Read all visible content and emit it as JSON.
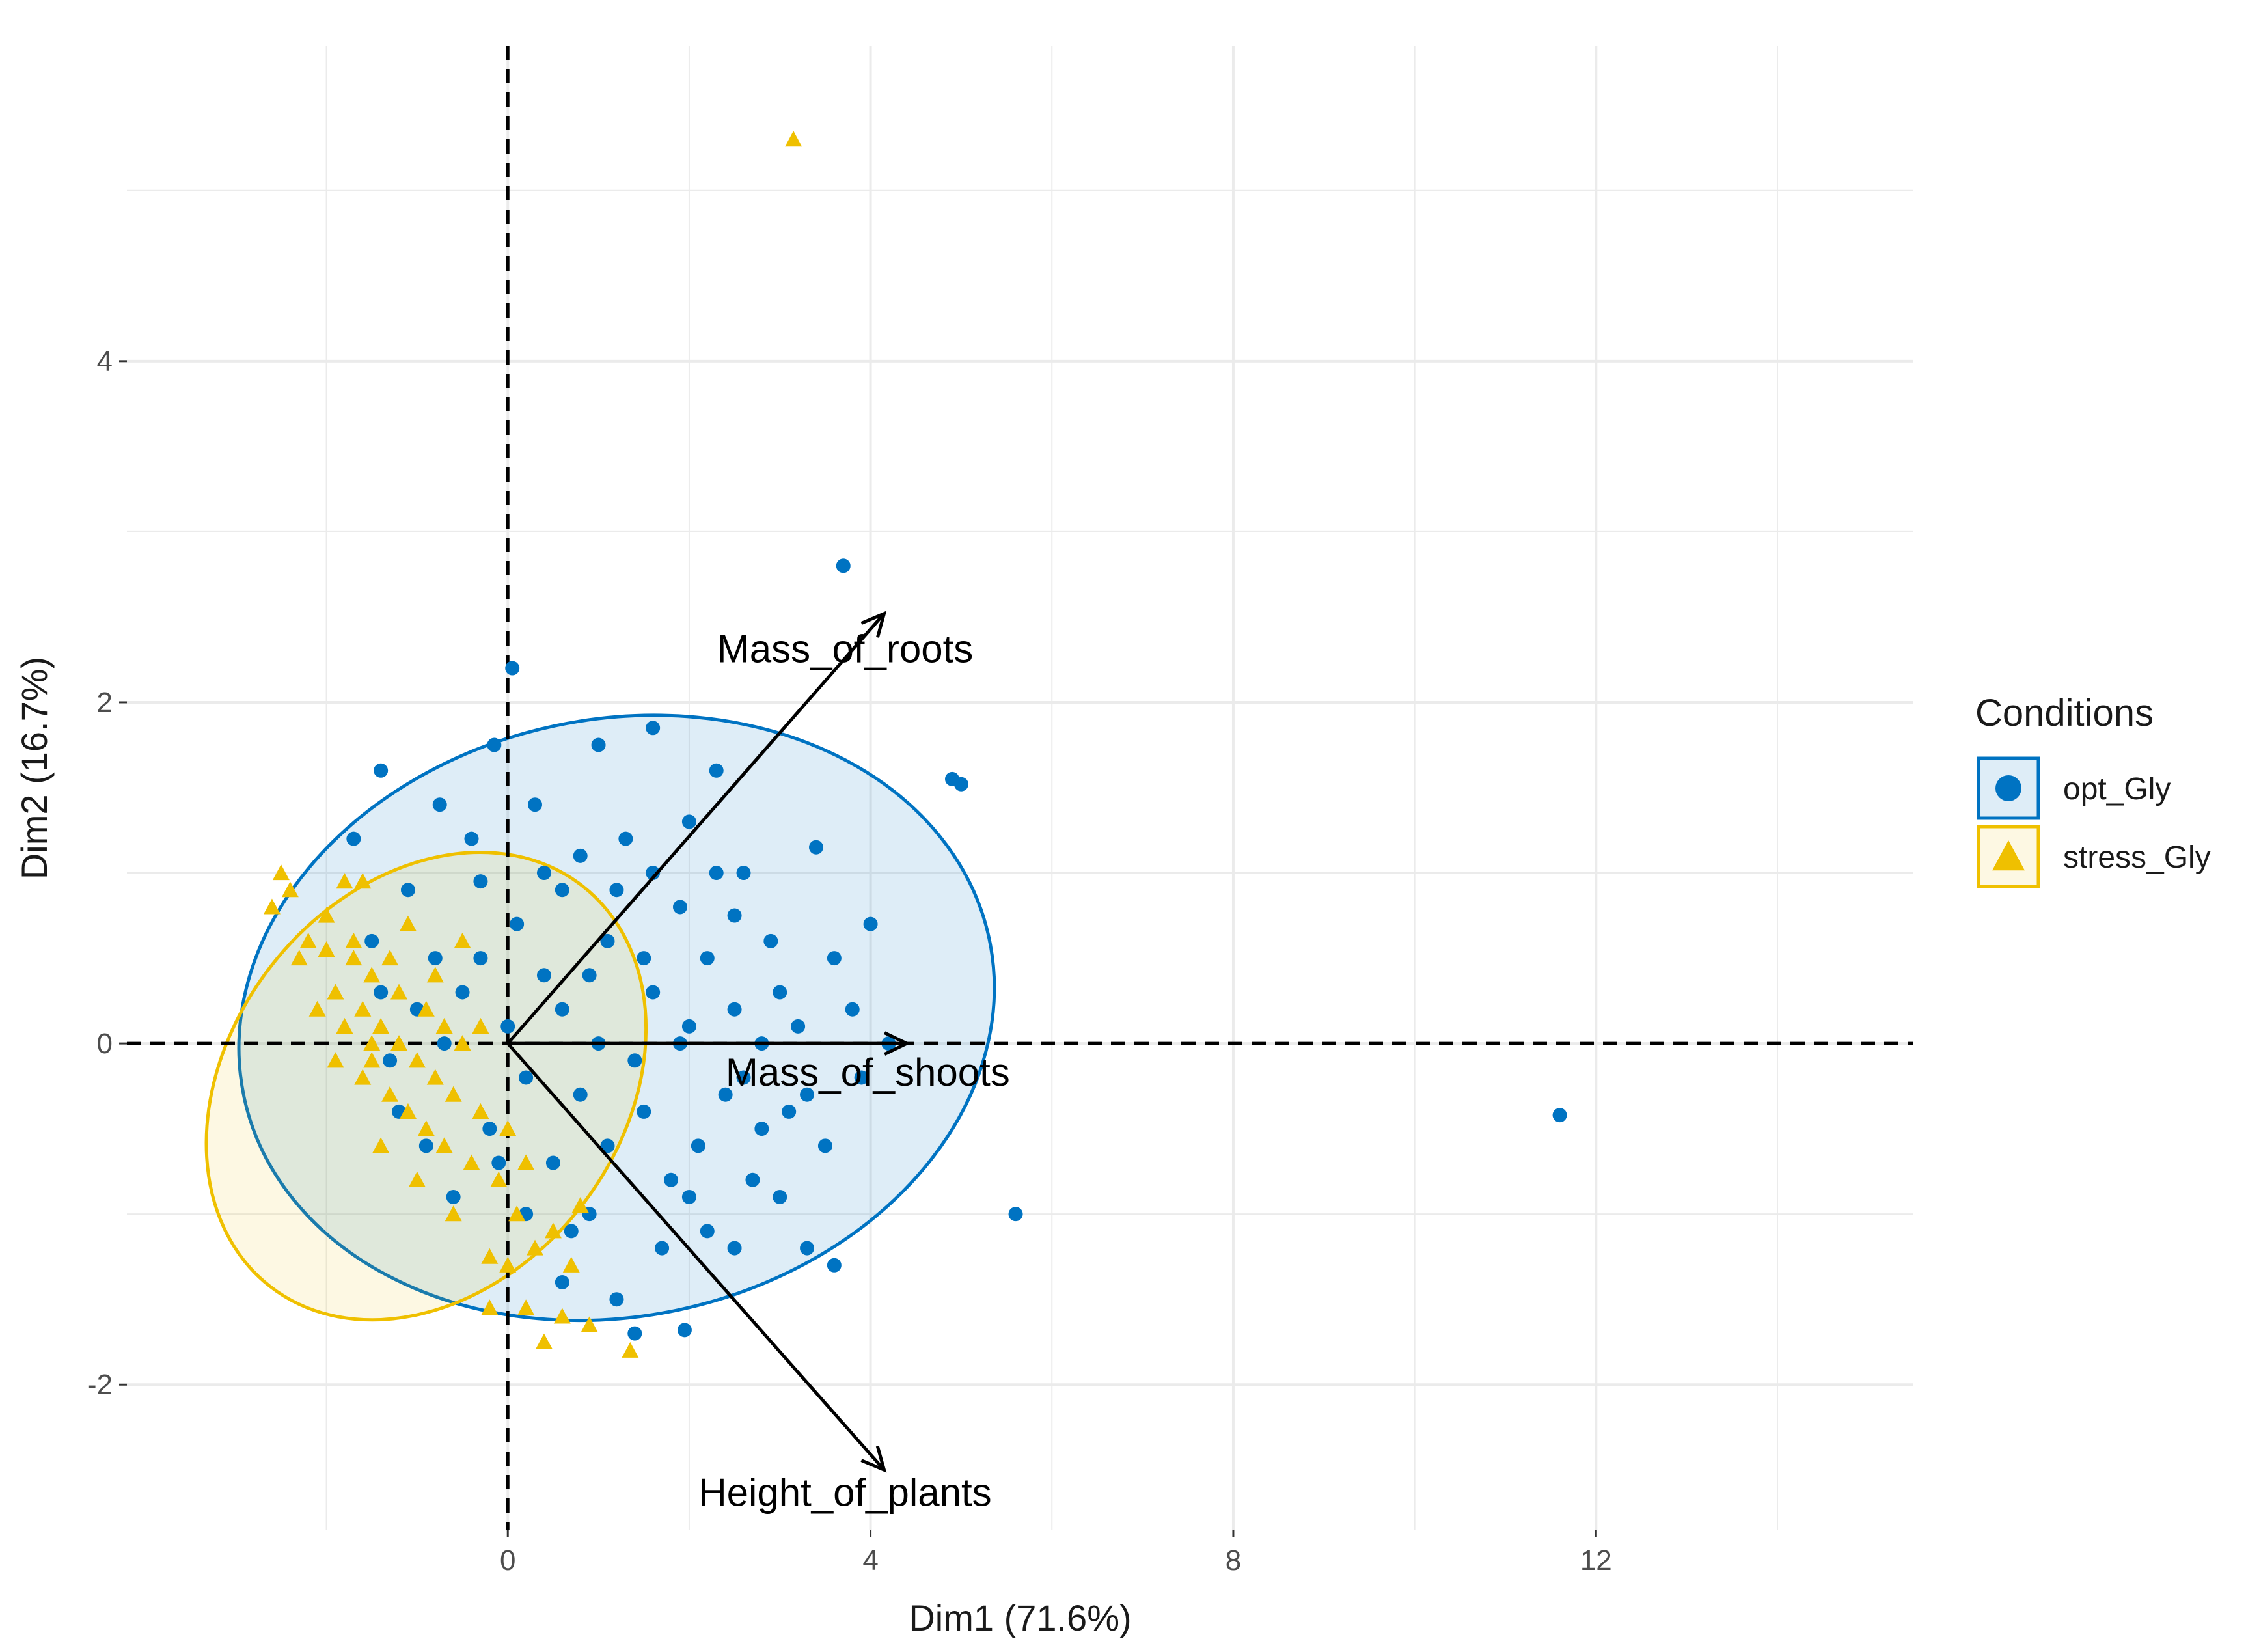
{
  "chart_data": {
    "type": "scatter",
    "title": "",
    "xlabel": "Dim1 (71.6%)",
    "ylabel": "Dim2 (16.7%)",
    "xlim": [
      -4.2,
      15.5
    ],
    "ylim": [
      -2.85,
      5.85
    ],
    "x_ticks": [
      0,
      4,
      8,
      12
    ],
    "y_ticks": [
      -2,
      0,
      2,
      4
    ],
    "x_tick_labels": [
      "0",
      "4",
      "8",
      "12"
    ],
    "y_tick_labels": [
      "-2",
      "0",
      "2",
      "4"
    ],
    "grid": true,
    "reference_lines": {
      "x": 0,
      "y": 0,
      "style": "dashed"
    },
    "legend": {
      "title": "Conditions",
      "placement": "right",
      "entries": [
        {
          "name": "opt_Gly",
          "color": "#0073c2",
          "shape": "circle"
        },
        {
          "name": "stress_Gly",
          "color": "#efc000",
          "shape": "triangle"
        }
      ]
    },
    "series": [
      {
        "name": "opt_Gly",
        "color": "#0073c2",
        "shape": "circle",
        "ellipse": {
          "cx": 1.2,
          "cy": 0.15,
          "rx": 4.2,
          "ry": 1.75,
          "angle_deg": -12
        },
        "points": [
          [
            3.7,
            2.8
          ],
          [
            0.05,
            2.2
          ],
          [
            1.6,
            1.85
          ],
          [
            -1.4,
            1.6
          ],
          [
            4.9,
            1.55
          ],
          [
            5.0,
            1.52
          ],
          [
            -0.75,
            1.4
          ],
          [
            2.3,
            1.6
          ],
          [
            1.0,
            1.75
          ],
          [
            -0.15,
            1.75
          ],
          [
            3.4,
            1.15
          ],
          [
            4.0,
            0.7
          ],
          [
            11.6,
            -0.42
          ],
          [
            5.6,
            -1.0
          ],
          [
            3.6,
            -1.3
          ],
          [
            1.4,
            -1.7
          ],
          [
            1.95,
            -1.68
          ],
          [
            1.2,
            -1.5
          ],
          [
            2.5,
            -1.2
          ],
          [
            3.3,
            -1.2
          ],
          [
            0.6,
            -1.4
          ],
          [
            -1.7,
            1.2
          ],
          [
            -0.3,
            0.95
          ],
          [
            -1.1,
            0.9
          ],
          [
            2.5,
            0.75
          ],
          [
            0.8,
            1.1
          ],
          [
            2.0,
            1.3
          ],
          [
            -0.5,
            0.3
          ],
          [
            3.0,
            0.3
          ],
          [
            1.5,
            -0.4
          ],
          [
            2.8,
            -0.5
          ],
          [
            0.9,
            -1.0
          ],
          [
            2.2,
            -1.1
          ],
          [
            -1.3,
            -0.1
          ],
          [
            3.2,
            0.1
          ],
          [
            1.1,
            0.6
          ],
          [
            -0.2,
            -0.5
          ],
          [
            2.0,
            0.1
          ],
          [
            0.4,
            0.4
          ],
          [
            1.8,
            -0.8
          ],
          [
            3.5,
            -0.6
          ],
          [
            0.6,
            0.9
          ],
          [
            -0.8,
            0.5
          ],
          [
            2.6,
            1.0
          ],
          [
            1.3,
            1.2
          ],
          [
            0.2,
            -0.2
          ],
          [
            -1.0,
            0.2
          ],
          [
            3.9,
            -0.2
          ],
          [
            1.6,
            0.3
          ],
          [
            2.4,
            -0.3
          ],
          [
            0.5,
            -0.7
          ],
          [
            -0.6,
            -0.9
          ],
          [
            3.0,
            -0.9
          ],
          [
            1.0,
            0.0
          ],
          [
            2.2,
            0.5
          ],
          [
            -1.5,
            0.6
          ],
          [
            0.8,
            -0.3
          ],
          [
            4.2,
            0.0
          ],
          [
            1.9,
            0.8
          ],
          [
            0.1,
            0.7
          ],
          [
            2.9,
            0.6
          ],
          [
            -0.4,
            1.2
          ],
          [
            1.4,
            -0.1
          ],
          [
            0.3,
            1.4
          ],
          [
            2.7,
            -0.8
          ],
          [
            -1.2,
            -0.4
          ],
          [
            3.6,
            0.5
          ],
          [
            1.7,
            -1.2
          ],
          [
            0.9,
            0.4
          ],
          [
            2.1,
            -0.6
          ],
          [
            -0.9,
            -0.6
          ],
          [
            0.0,
            0.1
          ],
          [
            3.3,
            -0.3
          ],
          [
            1.2,
            0.9
          ],
          [
            2.5,
            0.2
          ],
          [
            -0.1,
            -0.7
          ],
          [
            1.5,
            0.5
          ],
          [
            0.7,
            -1.1
          ],
          [
            2.3,
            1.0
          ],
          [
            -0.7,
            0.0
          ],
          [
            3.8,
            0.2
          ],
          [
            1.1,
            -0.6
          ],
          [
            0.4,
            1.0
          ],
          [
            2.0,
            -0.9
          ],
          [
            -1.4,
            0.3
          ],
          [
            2.8,
            0.0
          ],
          [
            1.6,
            1.0
          ],
          [
            0.2,
            -1.0
          ],
          [
            3.1,
            -0.4
          ],
          [
            -0.3,
            0.5
          ],
          [
            1.9,
            0.0
          ],
          [
            0.6,
            0.2
          ],
          [
            2.6,
            -0.2
          ]
        ]
      },
      {
        "name": "stress_Gly",
        "color": "#efc000",
        "shape": "triangle",
        "ellipse": {
          "cx": -0.9,
          "cy": -0.25,
          "rx": 2.8,
          "ry": 1.15,
          "angle_deg": -52
        },
        "points": [
          [
            3.15,
            5.3
          ],
          [
            -2.5,
            1.0
          ],
          [
            -2.4,
            0.9
          ],
          [
            -2.6,
            0.8
          ],
          [
            -1.8,
            0.95
          ],
          [
            -1.6,
            0.95
          ],
          [
            -2.2,
            0.6
          ],
          [
            -2.0,
            0.55
          ],
          [
            -1.7,
            0.5
          ],
          [
            -1.5,
            0.4
          ],
          [
            -2.3,
            0.5
          ],
          [
            -1.9,
            0.3
          ],
          [
            -1.6,
            0.2
          ],
          [
            -1.4,
            0.1
          ],
          [
            -1.2,
            0.0
          ],
          [
            -1.0,
            -0.1
          ],
          [
            -0.8,
            -0.2
          ],
          [
            -0.6,
            -0.3
          ],
          [
            -1.8,
            0.1
          ],
          [
            -1.5,
            -0.1
          ],
          [
            -1.3,
            -0.3
          ],
          [
            -1.1,
            -0.4
          ],
          [
            -0.9,
            -0.5
          ],
          [
            -0.7,
            -0.6
          ],
          [
            -1.6,
            -0.2
          ],
          [
            -1.2,
            0.3
          ],
          [
            -0.9,
            0.2
          ],
          [
            -0.5,
            0.0
          ],
          [
            -0.3,
            -0.4
          ],
          [
            -0.1,
            -0.8
          ],
          [
            0.1,
            -1.0
          ],
          [
            0.3,
            -1.2
          ],
          [
            0.5,
            -1.1
          ],
          [
            -0.2,
            -1.25
          ],
          [
            -0.6,
            -1.0
          ],
          [
            -1.0,
            -0.8
          ],
          [
            -1.4,
            -0.6
          ],
          [
            -0.4,
            -0.7
          ],
          [
            0.0,
            -0.5
          ],
          [
            0.2,
            -0.7
          ],
          [
            -2.1,
            0.2
          ],
          [
            -1.9,
            -0.1
          ],
          [
            0.6,
            -1.6
          ],
          [
            0.9,
            -1.65
          ],
          [
            1.35,
            -1.8
          ],
          [
            0.4,
            -1.75
          ],
          [
            0.2,
            -1.55
          ],
          [
            -0.2,
            -1.55
          ],
          [
            0.0,
            -1.3
          ],
          [
            0.8,
            -0.95
          ],
          [
            0.7,
            -1.3
          ],
          [
            -0.8,
            0.4
          ],
          [
            -0.5,
            0.6
          ],
          [
            -1.1,
            0.7
          ],
          [
            -1.7,
            0.6
          ],
          [
            -2.0,
            0.75
          ],
          [
            -1.3,
            0.5
          ],
          [
            -0.7,
            0.1
          ],
          [
            -1.5,
            0.0
          ],
          [
            -0.3,
            0.1
          ]
        ]
      }
    ],
    "variables": [
      {
        "name": "Mass_of_roots",
        "x": 4.15,
        "y": 2.52
      },
      {
        "name": "Mass_of_shoots",
        "x": 4.4,
        "y": 0.0
      },
      {
        "name": "Height_of_plants",
        "x": 4.15,
        "y": -2.5
      }
    ]
  }
}
